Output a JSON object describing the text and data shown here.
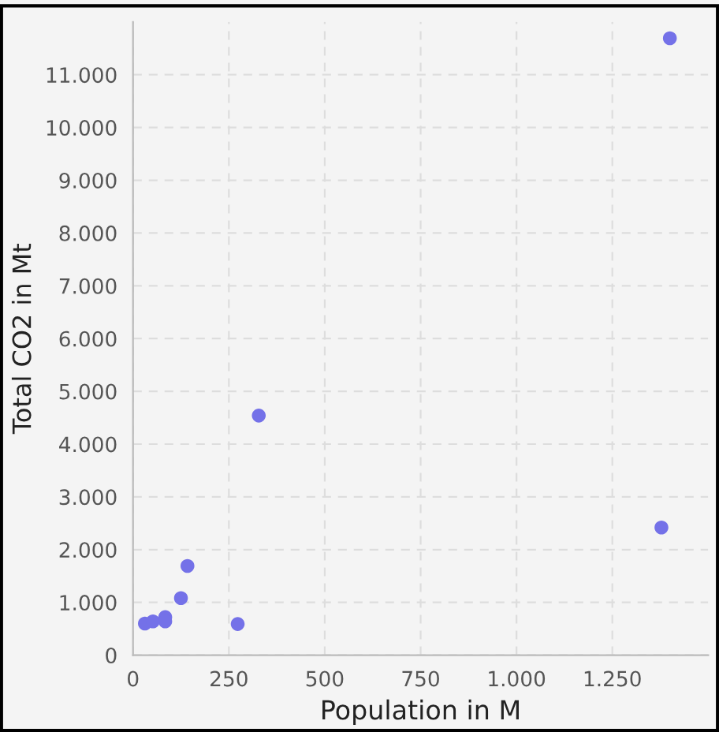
{
  "chart_data": {
    "type": "scatter",
    "xlabel": "Population in M",
    "ylabel": "Total CO2 in Mt",
    "x": [
      31,
      52,
      84,
      84,
      125,
      142,
      273,
      328,
      1378,
      1400
    ],
    "series": [
      {
        "color": "#7471e8",
        "values": [
          600,
          640,
          720,
          640,
          1080,
          1690,
          590,
          4540,
          2420,
          11690
        ]
      }
    ],
    "xlim": [
      0,
      1500
    ],
    "ylim": [
      0,
      12000
    ],
    "xticks": [
      0,
      250,
      500,
      750,
      {
        "value": 1000,
        "label": "1.000"
      },
      {
        "value": 1250,
        "label": "1.250"
      }
    ],
    "yticks": [
      0,
      {
        "value": 1000,
        "label": "1.000"
      },
      {
        "value": 2000,
        "label": "2.000"
      },
      {
        "value": 3000,
        "label": "3.000"
      },
      {
        "value": 4000,
        "label": "4.000"
      },
      {
        "value": 5000,
        "label": "5.000"
      },
      {
        "value": 6000,
        "label": "6.000"
      },
      {
        "value": 7000,
        "label": "7.000"
      },
      {
        "value": 8000,
        "label": "8.000"
      },
      {
        "value": 9000,
        "label": "9.000"
      },
      {
        "value": 10000,
        "label": "10.000"
      },
      {
        "value": 11000,
        "label": "11.000"
      }
    ],
    "grid": true,
    "marker": "circle"
  }
}
